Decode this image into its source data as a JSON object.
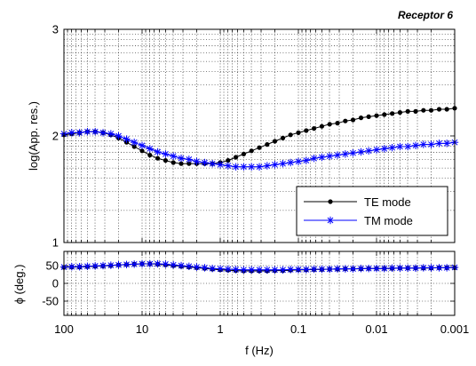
{
  "chart_data": [
    {
      "type": "line",
      "title": "Receptor 6",
      "xlabel": "",
      "ylabel": "log(App. res.)",
      "x_scale": "log",
      "x_reversed": true,
      "xlim": [
        100,
        0.001
      ],
      "ylim": [
        1,
        3
      ],
      "x_ticks": [
        "100",
        "10",
        "1",
        "0.1",
        "0.01",
        "0.001"
      ],
      "y_ticks": [
        "1",
        "2",
        "3"
      ],
      "grid": true,
      "legend": "bottom-right",
      "series": [
        {
          "name": "TE mode",
          "color": "#000000",
          "marker": "filled-circle",
          "x": [
            125.9,
            100,
            79.4,
            63.1,
            50.1,
            39.8,
            31.6,
            25.1,
            20,
            15.8,
            12.6,
            10,
            7.94,
            6.31,
            5.01,
            3.98,
            3.16,
            2.51,
            2,
            1.58,
            1.26,
            1,
            0.794,
            0.631,
            0.501,
            0.398,
            0.316,
            0.251,
            0.2,
            0.158,
            0.126,
            0.1,
            0.0794,
            0.0631,
            0.0501,
            0.0398,
            0.0316,
            0.0251,
            0.02,
            0.0158,
            0.0126,
            0.01,
            0.00794,
            0.00631,
            0.00501,
            0.00398,
            0.00316,
            0.00251,
            0.002,
            0.00158,
            0.00126,
            0.001
          ],
          "y": [
            2.0,
            2.01,
            2.02,
            2.03,
            2.04,
            2.04,
            2.03,
            2.01,
            1.98,
            1.94,
            1.9,
            1.86,
            1.82,
            1.79,
            1.77,
            1.75,
            1.74,
            1.74,
            1.74,
            1.74,
            1.74,
            1.75,
            1.77,
            1.8,
            1.83,
            1.86,
            1.89,
            1.92,
            1.95,
            1.98,
            2.01,
            2.03,
            2.05,
            2.07,
            2.09,
            2.11,
            2.12,
            2.14,
            2.15,
            2.17,
            2.18,
            2.19,
            2.2,
            2.21,
            2.22,
            2.23,
            2.23,
            2.24,
            2.24,
            2.25,
            2.25,
            2.26
          ]
        },
        {
          "name": "TM mode",
          "color": "#0000ff",
          "marker": "asterisk",
          "x": [
            125.9,
            100,
            79.4,
            63.1,
            50.1,
            39.8,
            31.6,
            25.1,
            20,
            15.8,
            12.6,
            10,
            7.94,
            6.31,
            5.01,
            3.98,
            3.16,
            2.51,
            2,
            1.58,
            1.26,
            1,
            0.794,
            0.631,
            0.501,
            0.398,
            0.316,
            0.251,
            0.2,
            0.158,
            0.126,
            0.1,
            0.0794,
            0.0631,
            0.0501,
            0.0398,
            0.0316,
            0.0251,
            0.02,
            0.0158,
            0.0126,
            0.01,
            0.00794,
            0.00631,
            0.00501,
            0.00398,
            0.00316,
            0.00251,
            0.002,
            0.00158,
            0.00126,
            0.001
          ],
          "y": [
            2.01,
            2.02,
            2.03,
            2.03,
            2.04,
            2.04,
            2.03,
            2.02,
            2.0,
            1.97,
            1.94,
            1.91,
            1.88,
            1.85,
            1.83,
            1.81,
            1.79,
            1.78,
            1.76,
            1.75,
            1.74,
            1.73,
            1.72,
            1.71,
            1.71,
            1.71,
            1.71,
            1.72,
            1.73,
            1.74,
            1.75,
            1.76,
            1.77,
            1.79,
            1.8,
            1.81,
            1.82,
            1.83,
            1.84,
            1.85,
            1.86,
            1.87,
            1.88,
            1.89,
            1.9,
            1.9,
            1.91,
            1.92,
            1.92,
            1.93,
            1.93,
            1.94
          ]
        }
      ]
    },
    {
      "type": "line",
      "title": "",
      "xlabel": "f (Hz)",
      "ylabel": "ϕ (deg.)",
      "x_scale": "log",
      "x_reversed": true,
      "xlim": [
        100,
        0.001
      ],
      "ylim": [
        -90,
        90
      ],
      "x_ticks": [
        "100",
        "10",
        "1",
        "0.1",
        "0.01",
        "0.001"
      ],
      "y_ticks": [
        "50",
        "0",
        "-50"
      ],
      "grid": true,
      "series": [
        {
          "name": "TE mode",
          "color": "#000000",
          "marker": "filled-circle",
          "x": [
            125.9,
            100,
            79.4,
            63.1,
            50.1,
            39.8,
            31.6,
            25.1,
            20,
            15.8,
            12.6,
            10,
            7.94,
            6.31,
            5.01,
            3.98,
            3.16,
            2.51,
            2,
            1.58,
            1.26,
            1,
            0.794,
            0.631,
            0.501,
            0.398,
            0.316,
            0.251,
            0.2,
            0.158,
            0.126,
            0.1,
            0.0794,
            0.0631,
            0.0501,
            0.0398,
            0.0316,
            0.0251,
            0.02,
            0.0158,
            0.0126,
            0.01,
            0.00794,
            0.00631,
            0.00501,
            0.00398,
            0.00316,
            0.00251,
            0.002,
            0.00158,
            0.00126,
            0.001
          ],
          "y": [
            45,
            45,
            46,
            46,
            47,
            48,
            49,
            50,
            52,
            53,
            54,
            55,
            55,
            54,
            52,
            50,
            48,
            46,
            44,
            42,
            40,
            38,
            37,
            36,
            35,
            35,
            35,
            35,
            36,
            36,
            37,
            38,
            38,
            39,
            39,
            40,
            40,
            41,
            41,
            41,
            42,
            42,
            42,
            42,
            43,
            43,
            43,
            43,
            43,
            44,
            44,
            44
          ]
        },
        {
          "name": "TM mode",
          "color": "#0000ff",
          "marker": "asterisk",
          "x": [
            125.9,
            100,
            79.4,
            63.1,
            50.1,
            39.8,
            31.6,
            25.1,
            20,
            15.8,
            12.6,
            10,
            7.94,
            6.31,
            5.01,
            3.98,
            3.16,
            2.51,
            2,
            1.58,
            1.26,
            1,
            0.794,
            0.631,
            0.501,
            0.398,
            0.316,
            0.251,
            0.2,
            0.158,
            0.126,
            0.1,
            0.0794,
            0.0631,
            0.0501,
            0.0398,
            0.0316,
            0.0251,
            0.02,
            0.0158,
            0.0126,
            0.01,
            0.00794,
            0.00631,
            0.00501,
            0.00398,
            0.00316,
            0.00251,
            0.002,
            0.00158,
            0.00126,
            0.001
          ],
          "y": [
            46,
            46,
            47,
            47,
            48,
            49,
            50,
            51,
            52,
            53,
            54,
            55,
            55,
            55,
            54,
            52,
            50,
            48,
            46,
            44,
            42,
            41,
            40,
            39,
            38,
            38,
            38,
            38,
            38,
            38,
            39,
            39,
            39,
            40,
            40,
            40,
            41,
            41,
            41,
            42,
            42,
            42,
            42,
            43,
            43,
            43,
            43,
            44,
            44,
            44,
            44,
            45
          ]
        }
      ]
    }
  ]
}
